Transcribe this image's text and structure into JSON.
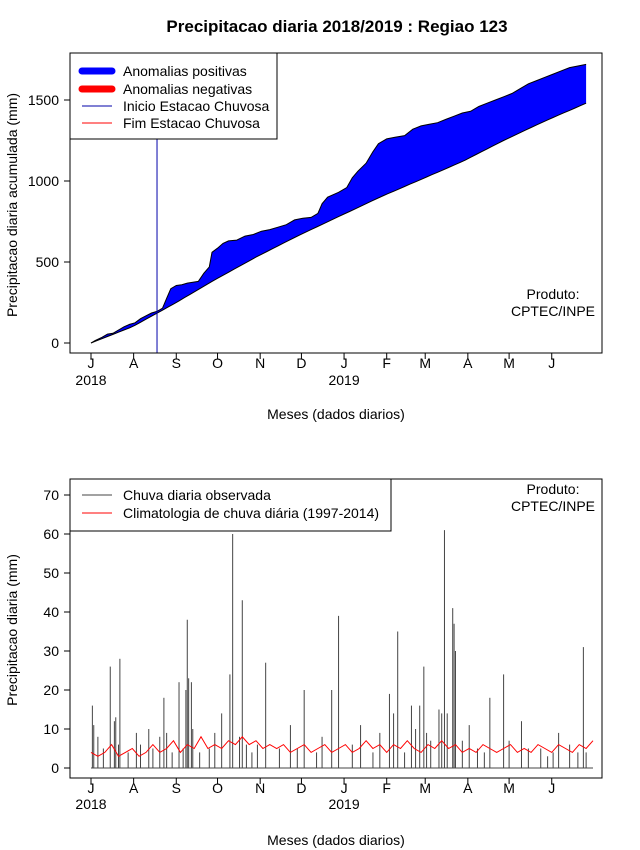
{
  "title": "Precipitacao diaria 2018/2019 : Regiao 123",
  "credit": [
    "Produto:",
    "CPTEC/INPE"
  ],
  "months": [
    "J",
    "A",
    "S",
    "O",
    "N",
    "D",
    "J",
    "F",
    "M",
    "A",
    "M",
    "J"
  ],
  "years": [
    {
      "label": "2018",
      "month_index": 0
    },
    {
      "label": "2019",
      "month_index": 6
    }
  ],
  "chart_data": [
    {
      "type": "area",
      "ylabel": "Precipitacao diaria acumulada (mm)",
      "xlabel": "Meses (dados diarios)",
      "x_unit": "day",
      "x_start": "2018-07-01",
      "x_end": "2019-06-30",
      "xlim_days": [
        0,
        365
      ],
      "ylim": [
        0,
        1800
      ],
      "yticks": [
        0,
        500,
        1000,
        1500
      ],
      "legend_position": "top-left",
      "legend": [
        {
          "label": "Anomalias positivas",
          "color": "#0000ff",
          "style": "thick"
        },
        {
          "label": "Anomalias negativas",
          "color": "#ff0000",
          "style": "thick"
        },
        {
          "label": "Inicio Estacao Chuvosa",
          "color": "#0000aa",
          "style": "line"
        },
        {
          "label": "Fim Estacao Chuvosa",
          "color": "#ff0000",
          "style": "line"
        }
      ],
      "rainy_season_start_day": 48,
      "observed_cumulative": [
        [
          0,
          0
        ],
        [
          3,
          15
        ],
        [
          8,
          35
        ],
        [
          12,
          55
        ],
        [
          16,
          60
        ],
        [
          20,
          80
        ],
        [
          24,
          100
        ],
        [
          28,
          115
        ],
        [
          32,
          125
        ],
        [
          36,
          150
        ],
        [
          40,
          168
        ],
        [
          44,
          185
        ],
        [
          48,
          195
        ],
        [
          52,
          215
        ],
        [
          55,
          275
        ],
        [
          58,
          335
        ],
        [
          62,
          355
        ],
        [
          66,
          360
        ],
        [
          70,
          370
        ],
        [
          74,
          375
        ],
        [
          78,
          380
        ],
        [
          82,
          430
        ],
        [
          86,
          470
        ],
        [
          88,
          560
        ],
        [
          92,
          585
        ],
        [
          96,
          615
        ],
        [
          100,
          630
        ],
        [
          106,
          635
        ],
        [
          112,
          660
        ],
        [
          118,
          670
        ],
        [
          124,
          690
        ],
        [
          130,
          700
        ],
        [
          136,
          715
        ],
        [
          142,
          730
        ],
        [
          148,
          760
        ],
        [
          154,
          770
        ],
        [
          160,
          775
        ],
        [
          165,
          800
        ],
        [
          168,
          860
        ],
        [
          172,
          900
        ],
        [
          180,
          930
        ],
        [
          186,
          960
        ],
        [
          190,
          1020
        ],
        [
          194,
          1060
        ],
        [
          200,
          1110
        ],
        [
          205,
          1180
        ],
        [
          209,
          1230
        ],
        [
          215,
          1260
        ],
        [
          221,
          1270
        ],
        [
          228,
          1280
        ],
        [
          234,
          1320
        ],
        [
          240,
          1340
        ],
        [
          246,
          1350
        ],
        [
          252,
          1360
        ],
        [
          258,
          1380
        ],
        [
          264,
          1400
        ],
        [
          270,
          1420
        ],
        [
          276,
          1430
        ],
        [
          282,
          1460
        ],
        [
          288,
          1480
        ],
        [
          294,
          1500
        ],
        [
          300,
          1520
        ],
        [
          306,
          1540
        ],
        [
          312,
          1570
        ],
        [
          318,
          1600
        ],
        [
          324,
          1620
        ],
        [
          330,
          1640
        ],
        [
          336,
          1660
        ],
        [
          342,
          1680
        ],
        [
          348,
          1700
        ],
        [
          354,
          1710
        ],
        [
          360,
          1720
        ]
      ],
      "climatology_cumulative": [
        [
          0,
          0
        ],
        [
          30,
          100
        ],
        [
          60,
          240
        ],
        [
          90,
          390
        ],
        [
          120,
          530
        ],
        [
          150,
          660
        ],
        [
          180,
          780
        ],
        [
          210,
          900
        ],
        [
          240,
          1010
        ],
        [
          270,
          1120
        ],
        [
          300,
          1250
        ],
        [
          330,
          1370
        ],
        [
          360,
          1480
        ]
      ]
    },
    {
      "type": "bar",
      "ylabel": "Precipitacao diaria (mm)",
      "xlabel": "Meses (dados diarios)",
      "x_unit": "day",
      "x_start": "2018-07-01",
      "x_end": "2019-06-30",
      "xlim_days": [
        0,
        365
      ],
      "ylim": [
        0,
        70
      ],
      "yticks": [
        0,
        10,
        20,
        30,
        40,
        50,
        60,
        70
      ],
      "legend_position": "top-left",
      "legend": [
        {
          "label": "Chuva diaria observada",
          "color": "#444444",
          "style": "line"
        },
        {
          "label": "Climatologia de chuva diária (1997-2014)",
          "color": "#ff0000",
          "style": "line"
        }
      ],
      "observed_daily": [
        [
          1,
          16
        ],
        [
          2,
          11
        ],
        [
          5,
          8
        ],
        [
          9,
          5
        ],
        [
          14,
          26
        ],
        [
          17,
          12
        ],
        [
          18,
          13
        ],
        [
          20,
          6
        ],
        [
          21,
          28
        ],
        [
          27,
          4
        ],
        [
          33,
          9
        ],
        [
          36,
          6
        ],
        [
          42,
          10
        ],
        [
          45,
          5
        ],
        [
          50,
          8
        ],
        [
          53,
          18
        ],
        [
          55,
          9
        ],
        [
          59,
          4
        ],
        [
          64,
          22
        ],
        [
          67,
          5
        ],
        [
          69,
          20
        ],
        [
          70,
          38
        ],
        [
          71,
          23
        ],
        [
          73,
          22
        ],
        [
          74,
          10
        ],
        [
          79,
          4
        ],
        [
          86,
          5
        ],
        [
          90,
          9
        ],
        [
          95,
          14
        ],
        [
          101,
          24
        ],
        [
          103,
          60
        ],
        [
          108,
          8
        ],
        [
          110,
          43
        ],
        [
          113,
          6
        ],
        [
          117,
          4
        ],
        [
          121,
          6
        ],
        [
          127,
          27
        ],
        [
          137,
          5
        ],
        [
          145,
          11
        ],
        [
          150,
          5
        ],
        [
          155,
          20
        ],
        [
          164,
          4
        ],
        [
          168,
          8
        ],
        [
          175,
          20
        ],
        [
          180,
          39
        ],
        [
          190,
          6
        ],
        [
          196,
          11
        ],
        [
          205,
          4
        ],
        [
          210,
          9
        ],
        [
          217,
          19
        ],
        [
          220,
          14
        ],
        [
          223,
          35
        ],
        [
          228,
          4
        ],
        [
          233,
          16
        ],
        [
          236,
          10
        ],
        [
          239,
          16
        ],
        [
          242,
          26
        ],
        [
          244,
          9
        ],
        [
          247,
          7
        ],
        [
          253,
          15
        ],
        [
          255,
          14
        ],
        [
          257,
          61
        ],
        [
          259,
          14
        ],
        [
          263,
          41
        ],
        [
          264,
          37
        ],
        [
          265,
          30
        ],
        [
          270,
          7
        ],
        [
          275,
          11
        ],
        [
          281,
          5
        ],
        [
          286,
          4
        ],
        [
          290,
          18
        ],
        [
          300,
          24
        ],
        [
          304,
          7
        ],
        [
          313,
          12
        ],
        [
          318,
          5
        ],
        [
          327,
          5
        ],
        [
          332,
          3
        ],
        [
          336,
          4
        ],
        [
          340,
          9
        ],
        [
          348,
          6
        ],
        [
          354,
          4
        ],
        [
          358,
          31
        ],
        [
          360,
          4
        ]
      ],
      "climatology_daily": [
        [
          0,
          4
        ],
        [
          5,
          3
        ],
        [
          10,
          4
        ],
        [
          15,
          6
        ],
        [
          20,
          3
        ],
        [
          25,
          4
        ],
        [
          30,
          5
        ],
        [
          35,
          3
        ],
        [
          40,
          4
        ],
        [
          45,
          6
        ],
        [
          50,
          4
        ],
        [
          55,
          5
        ],
        [
          60,
          7
        ],
        [
          65,
          4
        ],
        [
          70,
          6
        ],
        [
          75,
          5
        ],
        [
          80,
          8
        ],
        [
          85,
          5
        ],
        [
          90,
          6
        ],
        [
          95,
          5
        ],
        [
          100,
          7
        ],
        [
          105,
          6
        ],
        [
          110,
          8
        ],
        [
          115,
          6
        ],
        [
          120,
          7
        ],
        [
          125,
          5
        ],
        [
          130,
          6
        ],
        [
          135,
          5
        ],
        [
          140,
          6
        ],
        [
          145,
          4
        ],
        [
          150,
          5
        ],
        [
          155,
          6
        ],
        [
          160,
          4
        ],
        [
          165,
          5
        ],
        [
          170,
          6
        ],
        [
          175,
          4
        ],
        [
          180,
          5
        ],
        [
          185,
          6
        ],
        [
          190,
          4
        ],
        [
          195,
          5
        ],
        [
          200,
          7
        ],
        [
          205,
          5
        ],
        [
          210,
          6
        ],
        [
          215,
          4
        ],
        [
          220,
          6
        ],
        [
          225,
          5
        ],
        [
          230,
          7
        ],
        [
          235,
          5
        ],
        [
          240,
          4
        ],
        [
          245,
          6
        ],
        [
          250,
          5
        ],
        [
          255,
          7
        ],
        [
          260,
          5
        ],
        [
          265,
          6
        ],
        [
          270,
          4
        ],
        [
          275,
          5
        ],
        [
          280,
          4
        ],
        [
          285,
          6
        ],
        [
          290,
          5
        ],
        [
          295,
          4
        ],
        [
          300,
          5
        ],
        [
          305,
          6
        ],
        [
          310,
          4
        ],
        [
          315,
          5
        ],
        [
          320,
          4
        ],
        [
          325,
          6
        ],
        [
          330,
          5
        ],
        [
          335,
          4
        ],
        [
          340,
          6
        ],
        [
          345,
          5
        ],
        [
          350,
          4
        ],
        [
          355,
          6
        ],
        [
          360,
          5
        ],
        [
          365,
          7
        ]
      ]
    }
  ]
}
